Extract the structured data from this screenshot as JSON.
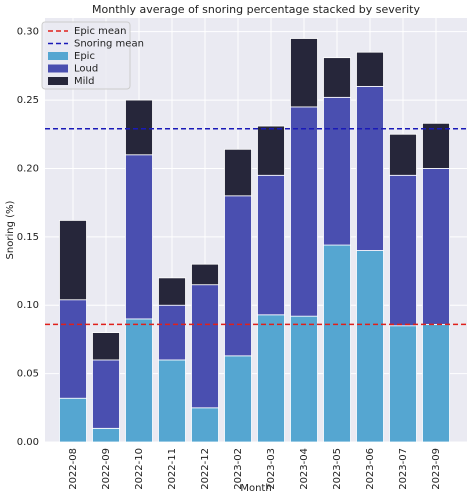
{
  "chart_data": {
    "type": "bar",
    "stacked": true,
    "title": "Monthly average of snoring percentage stacked by severity",
    "xlabel": "Month",
    "ylabel": "Snoring (%)",
    "categories": [
      "2022-08",
      "2022-09",
      "2022-10",
      "2022-11",
      "2022-12",
      "2023-02",
      "2023-03",
      "2023-04",
      "2023-05",
      "2023-06",
      "2023-07",
      "2023-09"
    ],
    "series": [
      {
        "name": "Epic",
        "color": "#55a6d1",
        "values": [
          0.032,
          0.01,
          0.09,
          0.06,
          0.025,
          0.063,
          0.093,
          0.092,
          0.144,
          0.14,
          0.085,
          0.086
        ]
      },
      {
        "name": "Loud",
        "color": "#4a4fb0",
        "values": [
          0.072,
          0.05,
          0.12,
          0.04,
          0.09,
          0.117,
          0.102,
          0.153,
          0.108,
          0.12,
          0.11,
          0.114
        ]
      },
      {
        "name": "Mild",
        "color": "#26263a",
        "values": [
          0.058,
          0.02,
          0.04,
          0.02,
          0.015,
          0.034,
          0.036,
          0.05,
          0.029,
          0.025,
          0.03,
          0.033
        ]
      }
    ],
    "hlines": [
      {
        "name": "Epic mean",
        "value": 0.086,
        "color": "#e0201b"
      },
      {
        "name": "Snoring mean",
        "value": 0.229,
        "color": "#1a1ab8"
      }
    ],
    "ylim": [
      0,
      0.31
    ],
    "yticks": [
      {
        "value": 0,
        "label": "0.00"
      },
      {
        "value": 0.05,
        "label": "0.05"
      },
      {
        "value": 0.1,
        "label": "0.10"
      },
      {
        "value": 0.15,
        "label": "0.15"
      },
      {
        "value": 0.2,
        "label": "0.20"
      },
      {
        "value": 0.25,
        "label": "0.25"
      },
      {
        "value": 0.3,
        "label": "0.30"
      }
    ],
    "grid": true,
    "legend": "upper left"
  }
}
